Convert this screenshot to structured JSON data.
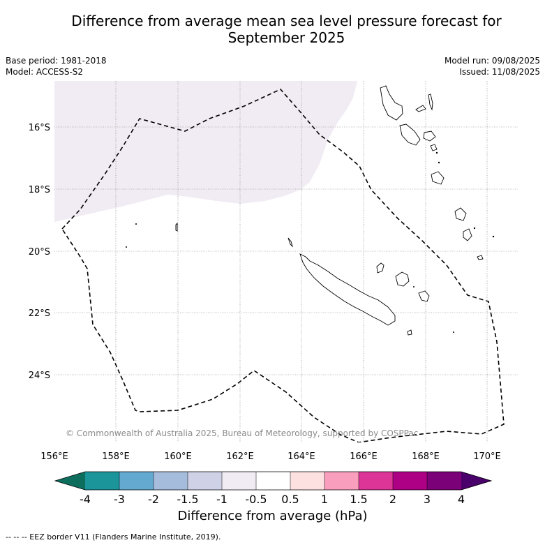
{
  "title_line1": "Difference from average mean sea level pressure forecast for",
  "title_line2": "September 2025",
  "base_period": "Base period: 1981-2018",
  "model": "Model: ACCESS-S2",
  "model_run": "Model run: 09/08/2025",
  "issued": "Issued: 11/08/2025",
  "lat_ticks": [
    "16°S",
    "18°S",
    "20°S",
    "22°S",
    "24°S"
  ],
  "lon_ticks": [
    "156°E",
    "158°E",
    "160°E",
    "162°E",
    "164°E",
    "166°E",
    "168°E",
    "170°E"
  ],
  "copyright": "© Commonwealth of Australia 2025, Bureau of Meteorology, supported by COSPPac",
  "colorbar": {
    "ticks": [
      "-4",
      "-3",
      "-2",
      "-1.5",
      "-1",
      "-0.5",
      "0.5",
      "1",
      "1.5",
      "2",
      "3",
      "4"
    ],
    "colors": [
      "#0d6e5e",
      "#1b9599",
      "#64a9d0",
      "#a6bcdc",
      "#cfd1e6",
      "#f1ecf3",
      "#ffffff",
      "#fde0e0",
      "#f99fbd",
      "#dd3597",
      "#ad0085",
      "#7a0177",
      "#49006a"
    ],
    "label": "Difference from average (hPa)"
  },
  "eez_legend": "--  --  -- EEZ border V11 (Flanders Marine Institute, 2019)."
}
